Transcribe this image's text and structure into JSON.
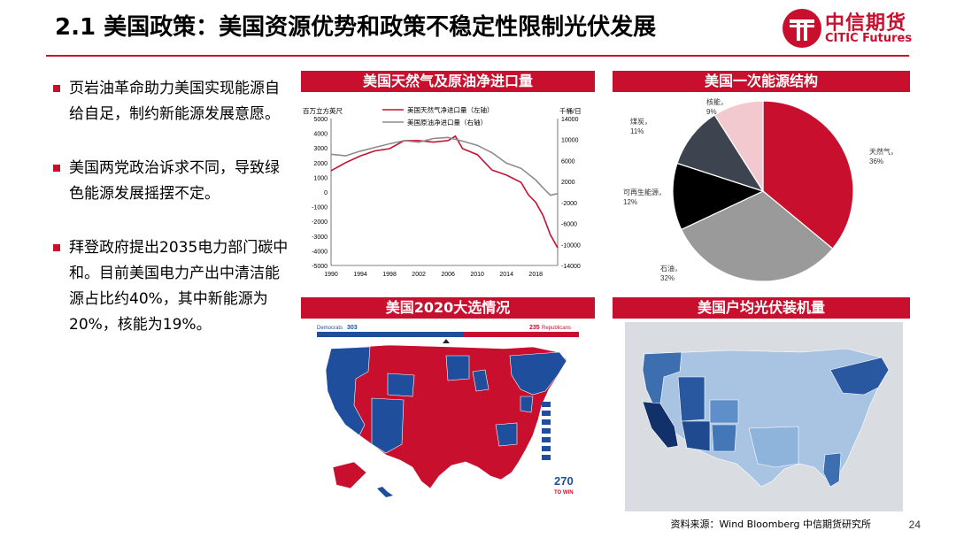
{
  "header": {
    "title": "2.1 美国政策：美国资源优势和政策不稳定性限制光伏发展",
    "logo_cn": "中信期货",
    "logo_en": "CITIC Futures"
  },
  "bullets": [
    "页岩油革命助力美国实现能源自给自足，制约新能源发展意愿。",
    "美国两党政治诉求不同，导致绿色能源发展摇摆不定。",
    "拜登政府提出2035电力部门碳中和。目前美国电力产出中清洁能源占比约40%，其中新能源为20%，核能为19%。"
  ],
  "panels": {
    "p1": "美国天然气及原油净进口量",
    "p2": "美国一次能源结构",
    "p3": "美国2020大选情况",
    "p4": "美国户均光伏装机量"
  },
  "colors": {
    "red": "#c8102e",
    "blue": "#1f4e9c",
    "gray": "#6b6b6b"
  },
  "chart_data": [
    {
      "type": "line",
      "title": "",
      "ylabel": "百万立方英尺",
      "y2label": "千桶/日",
      "ylim": [
        -5000,
        5000
      ],
      "y2lim": [
        -14000,
        14000
      ],
      "yticks": [
        5000,
        4000,
        3000,
        2000,
        1000,
        0,
        -1000,
        -2000,
        -3000,
        -4000,
        -5000
      ],
      "y2ticks": [
        14000,
        10000,
        6000,
        2000,
        -2000,
        -6000,
        -10000,
        -14000
      ],
      "xticks": [
        1990,
        1994,
        1998,
        2002,
        2006,
        2010,
        2014,
        2018
      ],
      "series": [
        {
          "name": "美国天然气净进口量（左轴）",
          "color": "#c8102e",
          "x": [
            1990,
            1992,
            1994,
            1996,
            1998,
            2000,
            2002,
            2004,
            2006,
            2007,
            2008,
            2010,
            2012,
            2014,
            2016,
            2017,
            2018,
            2019,
            2020,
            2021
          ],
          "values": [
            1450,
            2000,
            2450,
            2800,
            2950,
            3500,
            3500,
            3400,
            3500,
            3800,
            2950,
            2550,
            1500,
            1150,
            650,
            -200,
            -700,
            -1600,
            -2900,
            -3800
          ]
        },
        {
          "name": "美国原油净进口量（右轴）",
          "color": "#8c8c8c",
          "axis": "right",
          "x": [
            1990,
            1992,
            1994,
            1996,
            1998,
            2000,
            2002,
            2004,
            2006,
            2008,
            2010,
            2012,
            2014,
            2016,
            2018,
            2019,
            2020,
            2021
          ],
          "values": [
            7200,
            6900,
            7800,
            8500,
            9200,
            9800,
            9500,
            10200,
            10400,
            9700,
            8900,
            7500,
            5500,
            4500,
            2300,
            800,
            -600,
            -300
          ]
        }
      ]
    },
    {
      "type": "pie",
      "categories": [
        "天然气",
        "石油",
        "可再生能源",
        "煤炭",
        "核能"
      ],
      "values": [
        36,
        32,
        12,
        11,
        9
      ],
      "colors": [
        "#c8102e",
        "#9a9a9a",
        "#000000",
        "#3d4450",
        "#f2c9cf"
      ],
      "labels": [
        "天然气，36%",
        "石油，32%",
        "可再生能源，12%",
        "煤炭，11%",
        "核能，9%"
      ]
    }
  ],
  "election": {
    "dem_label": "Democrats",
    "dem_votes": "303",
    "rep_label": "Republicans",
    "rep_votes": "235",
    "badge": "270",
    "badge2": "TO WIN"
  },
  "source": "资料来源：Wind Bloomberg 中信期货研究所",
  "page_number": "24"
}
